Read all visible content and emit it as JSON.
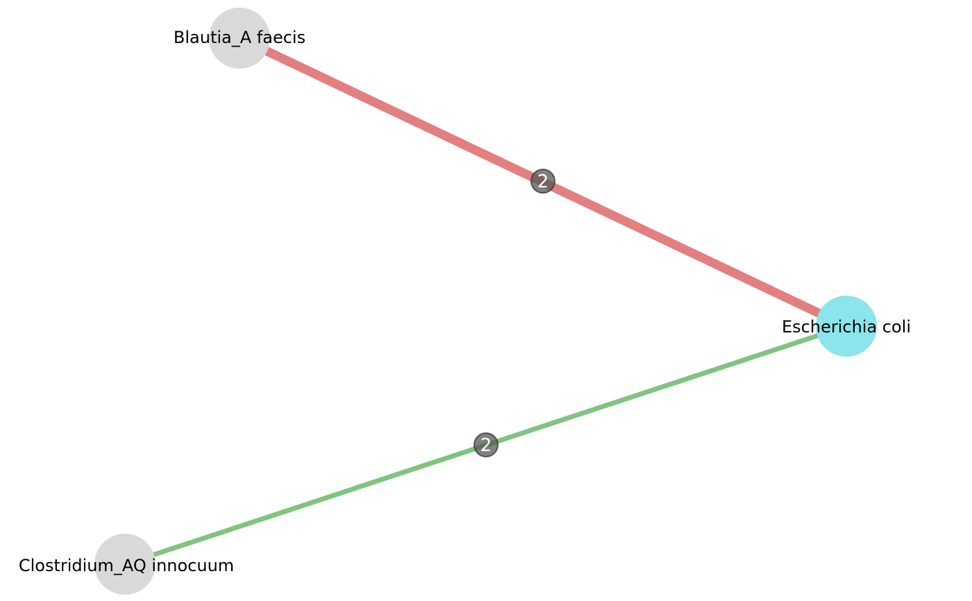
{
  "graph": {
    "nodes": [
      {
        "id": "blautia",
        "label": "Blautia_A faecis",
        "color": "#d9d9d9"
      },
      {
        "id": "ecoli",
        "label": "Escherichia coli",
        "color": "#8ce4ec"
      },
      {
        "id": "clostridium",
        "label": "Clostridium_AQ innocuum",
        "color": "#d9d9d9"
      }
    ],
    "edges": [
      {
        "source": "blautia",
        "target": "ecoli",
        "weight_label": "2",
        "color": "#e37f7f"
      },
      {
        "source": "clostridium",
        "target": "ecoli",
        "weight_label": "2",
        "color": "#7fc47f"
      }
    ],
    "badge_color": "#555555"
  }
}
